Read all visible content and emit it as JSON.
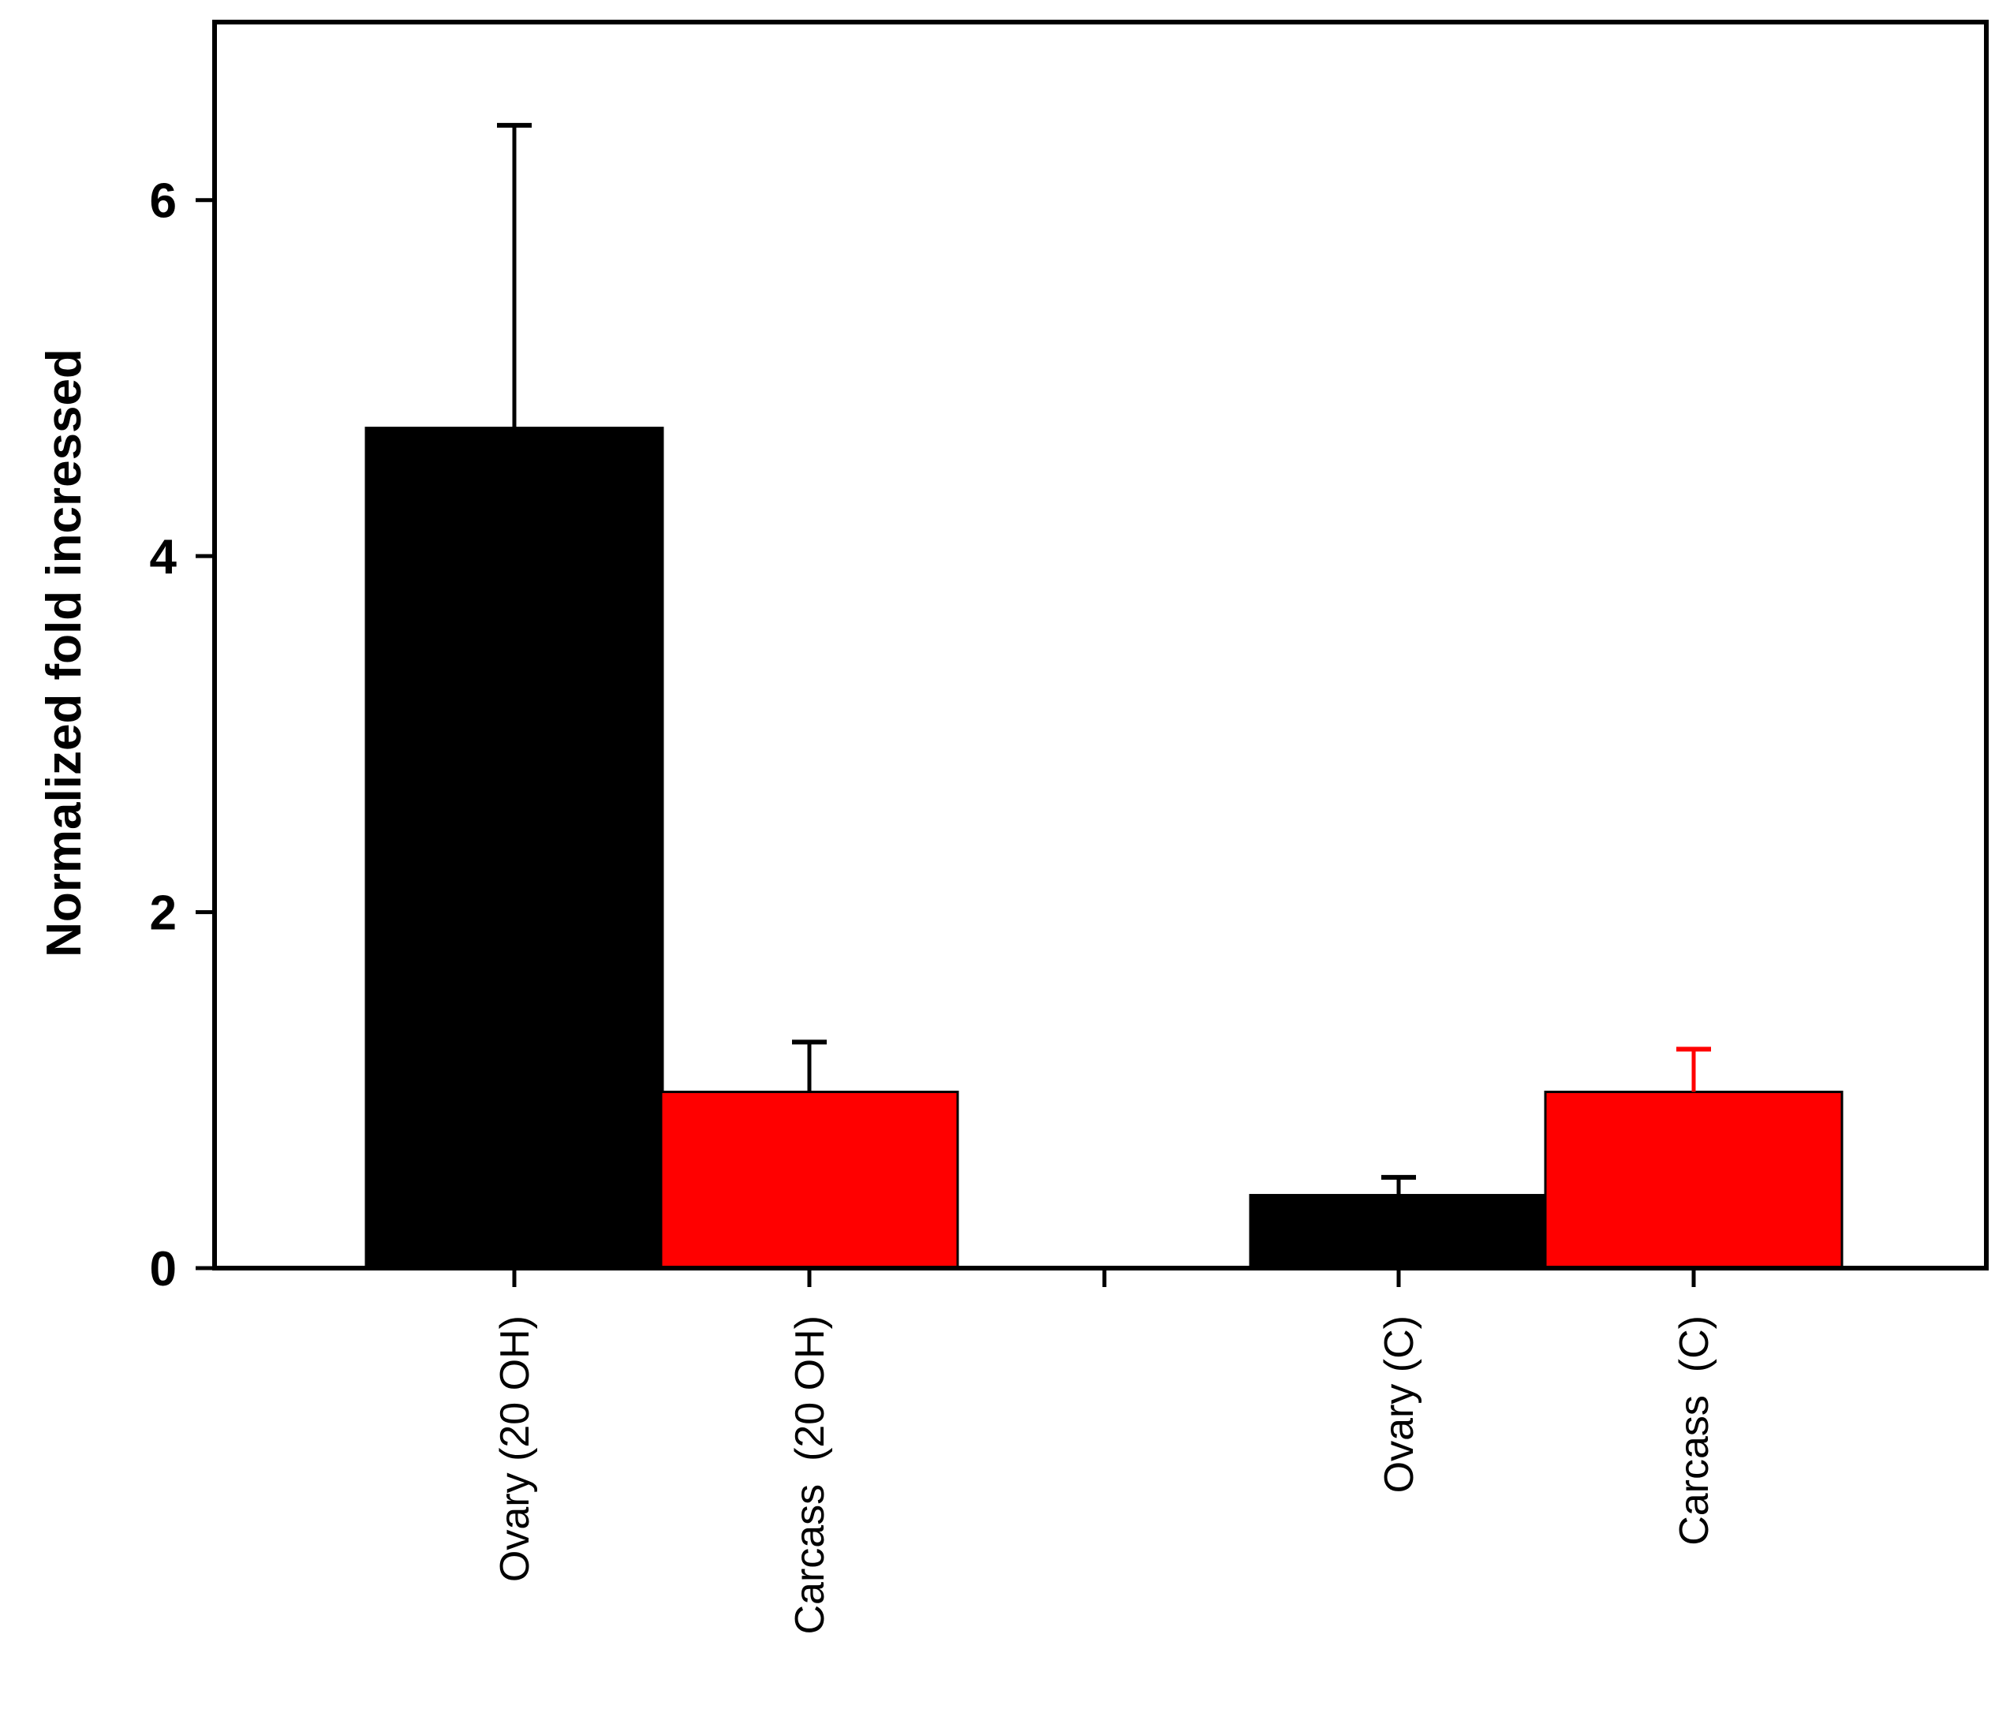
{
  "chart_data": {
    "type": "bar",
    "title": "",
    "xlabel": "",
    "ylabel": "Normalized fold incressed",
    "ylim": [
      0,
      7
    ],
    "yticks": [
      0,
      2,
      4,
      6
    ],
    "grid": false,
    "legend": "none",
    "categories": [
      "Ovary (20 OH)",
      "Carcass  (20 OH)",
      "",
      "Ovary (C)",
      "Carcass  (C)"
    ],
    "values": [
      4.72,
      0.99,
      null,
      0.41,
      0.99
    ],
    "errors": [
      1.7,
      0.28,
      null,
      0.1,
      0.24
    ],
    "bar_colors": [
      "#000000",
      "#ff0000",
      null,
      "#000000",
      "#ff0000"
    ],
    "error_colors": [
      "#000000",
      "#000000",
      null,
      "#000000",
      "#ff0000"
    ]
  }
}
